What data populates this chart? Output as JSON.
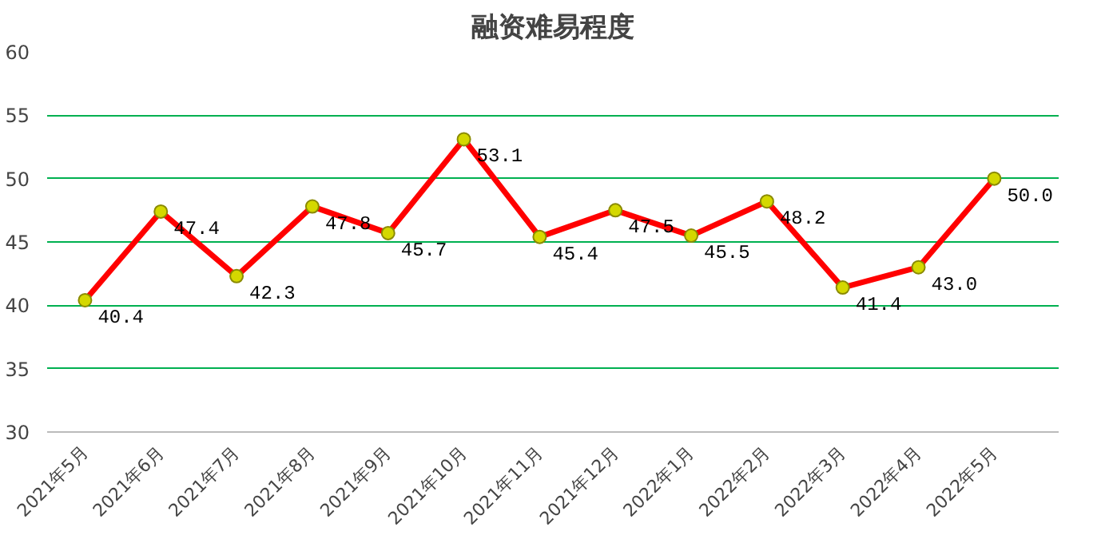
{
  "chart_data": {
    "type": "line",
    "title": "融资难易程度",
    "categories": [
      "2021年5月",
      "2021年6月",
      "2021年7月",
      "2021年8月",
      "2021年9月",
      "2021年10月",
      "2021年11月",
      "2021年12月",
      "2022年1月",
      "2022年2月",
      "2022年3月",
      "2022年4月",
      "2022年5月"
    ],
    "series": [
      {
        "color": "#ff0000",
        "values": [
          40.4,
          47.4,
          42.3,
          47.8,
          45.7,
          53.1,
          45.4,
          47.5,
          45.5,
          48.2,
          41.4,
          43.0,
          50.0
        ],
        "value_labels": [
          "40.4",
          "47.4",
          "42.3",
          "47.8",
          "45.7",
          "53.1",
          "45.4",
          "47.5",
          "45.5",
          "48.2",
          "41.4",
          "43.0",
          "50.0"
        ]
      }
    ],
    "ylim": [
      30,
      60
    ],
    "yticks": [
      30,
      35,
      40,
      45,
      50,
      55,
      60
    ],
    "grid": "y",
    "marker": "circle",
    "line_style": "solid"
  }
}
